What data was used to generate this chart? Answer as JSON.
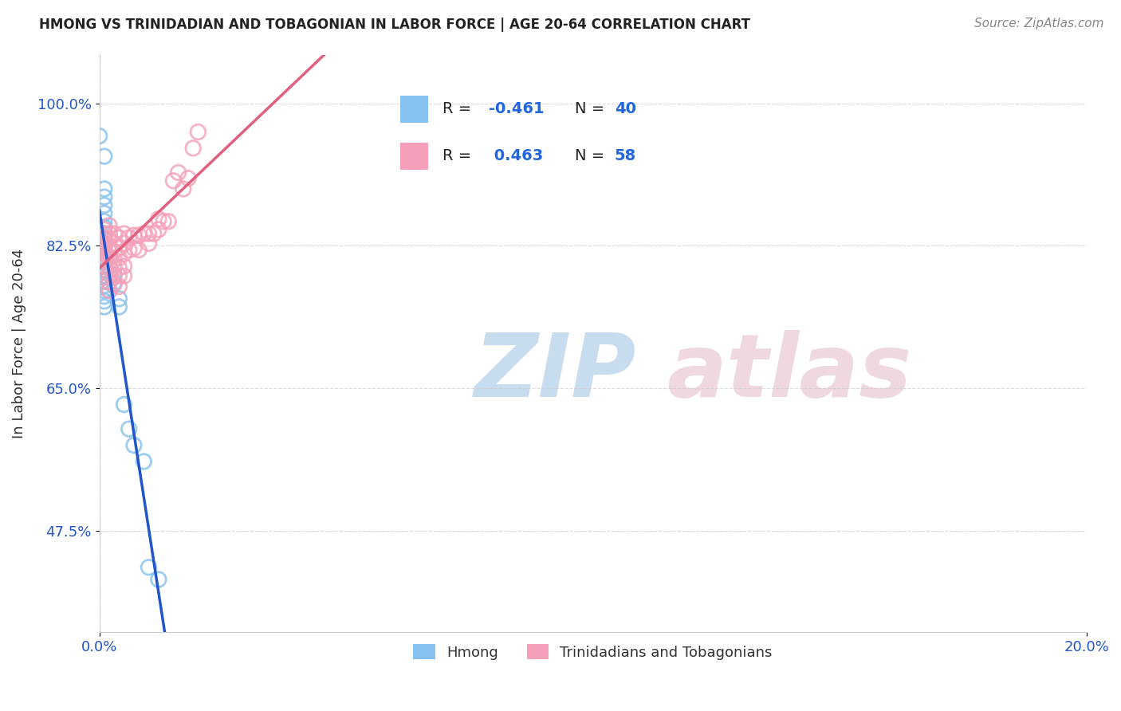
{
  "title": "HMONG VS TRINIDADIAN AND TOBAGONIAN IN LABOR FORCE | AGE 20-64 CORRELATION CHART",
  "source": "Source: ZipAtlas.com",
  "ylabel": "In Labor Force | Age 20-64",
  "ytick_values": [
    1.0,
    0.825,
    0.65,
    0.475
  ],
  "xlim": [
    0.0,
    0.2
  ],
  "ylim": [
    0.35,
    1.06
  ],
  "hmong_color": "#85c0ee",
  "tnt_color": "#f5a0b8",
  "regression_hmong_color": "#2255cc",
  "regression_tnt_color": "#e06080",
  "hmong_points": [
    [
      0.0,
      0.96
    ],
    [
      0.001,
      0.935
    ],
    [
      0.001,
      0.895
    ],
    [
      0.001,
      0.885
    ],
    [
      0.001,
      0.875
    ],
    [
      0.001,
      0.865
    ],
    [
      0.001,
      0.855
    ],
    [
      0.001,
      0.848
    ],
    [
      0.001,
      0.84
    ],
    [
      0.001,
      0.833
    ],
    [
      0.001,
      0.826
    ],
    [
      0.001,
      0.82
    ],
    [
      0.001,
      0.815
    ],
    [
      0.001,
      0.81
    ],
    [
      0.001,
      0.805
    ],
    [
      0.001,
      0.8
    ],
    [
      0.001,
      0.795
    ],
    [
      0.001,
      0.788
    ],
    [
      0.001,
      0.782
    ],
    [
      0.001,
      0.776
    ],
    [
      0.001,
      0.77
    ],
    [
      0.001,
      0.763
    ],
    [
      0.001,
      0.757
    ],
    [
      0.001,
      0.75
    ],
    [
      0.002,
      0.82
    ],
    [
      0.002,
      0.81
    ],
    [
      0.002,
      0.8
    ],
    [
      0.002,
      0.79
    ],
    [
      0.002,
      0.78
    ],
    [
      0.002,
      0.77
    ],
    [
      0.003,
      0.79
    ],
    [
      0.003,
      0.78
    ],
    [
      0.004,
      0.76
    ],
    [
      0.004,
      0.75
    ],
    [
      0.005,
      0.63
    ],
    [
      0.006,
      0.6
    ],
    [
      0.007,
      0.58
    ],
    [
      0.009,
      0.56
    ],
    [
      0.01,
      0.43
    ],
    [
      0.012,
      0.415
    ]
  ],
  "tnt_points": [
    [
      0.0,
      0.83
    ],
    [
      0.0,
      0.82
    ],
    [
      0.001,
      0.845
    ],
    [
      0.001,
      0.84
    ],
    [
      0.001,
      0.835
    ],
    [
      0.001,
      0.828
    ],
    [
      0.001,
      0.822
    ],
    [
      0.001,
      0.815
    ],
    [
      0.001,
      0.808
    ],
    [
      0.001,
      0.8
    ],
    [
      0.002,
      0.85
    ],
    [
      0.002,
      0.84
    ],
    [
      0.002,
      0.833
    ],
    [
      0.002,
      0.825
    ],
    [
      0.002,
      0.818
    ],
    [
      0.002,
      0.81
    ],
    [
      0.002,
      0.8
    ],
    [
      0.002,
      0.79
    ],
    [
      0.002,
      0.78
    ],
    [
      0.002,
      0.77
    ],
    [
      0.003,
      0.84
    ],
    [
      0.003,
      0.828
    ],
    [
      0.003,
      0.818
    ],
    [
      0.003,
      0.808
    ],
    [
      0.003,
      0.798
    ],
    [
      0.003,
      0.788
    ],
    [
      0.003,
      0.778
    ],
    [
      0.004,
      0.835
    ],
    [
      0.004,
      0.822
    ],
    [
      0.004,
      0.81
    ],
    [
      0.004,
      0.798
    ],
    [
      0.004,
      0.788
    ],
    [
      0.004,
      0.775
    ],
    [
      0.005,
      0.84
    ],
    [
      0.005,
      0.828
    ],
    [
      0.005,
      0.815
    ],
    [
      0.005,
      0.8
    ],
    [
      0.005,
      0.788
    ],
    [
      0.006,
      0.835
    ],
    [
      0.006,
      0.82
    ],
    [
      0.007,
      0.838
    ],
    [
      0.007,
      0.822
    ],
    [
      0.008,
      0.838
    ],
    [
      0.008,
      0.82
    ],
    [
      0.009,
      0.84
    ],
    [
      0.01,
      0.84
    ],
    [
      0.01,
      0.828
    ],
    [
      0.011,
      0.84
    ],
    [
      0.012,
      0.858
    ],
    [
      0.012,
      0.845
    ],
    [
      0.013,
      0.855
    ],
    [
      0.014,
      0.855
    ],
    [
      0.015,
      0.905
    ],
    [
      0.016,
      0.915
    ],
    [
      0.017,
      0.895
    ],
    [
      0.018,
      0.908
    ],
    [
      0.019,
      0.945
    ],
    [
      0.02,
      0.965
    ]
  ]
}
